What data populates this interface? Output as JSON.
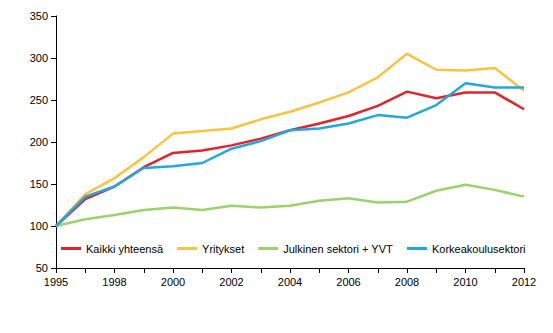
{
  "chart_data": {
    "type": "line",
    "categories": [
      "1995",
      null,
      "1998",
      null,
      "2000",
      null,
      "2002",
      null,
      "2004",
      null,
      "2006",
      null,
      "2008",
      null,
      "2010",
      null,
      "2012"
    ],
    "series": [
      {
        "name": "Kaikki yhteensä",
        "color": "#e3232b",
        "values": [
          100,
          132,
          147,
          170,
          187,
          190,
          196,
          204,
          214,
          222,
          231,
          243,
          260,
          252,
          259,
          259,
          239
        ]
      },
      {
        "name": "Yritykset",
        "color": "#f9c440",
        "values": [
          100,
          138,
          157,
          182,
          210,
          213,
          216,
          227,
          236,
          247,
          259,
          277,
          305,
          286,
          285,
          288,
          261
        ]
      },
      {
        "name": "Julkinen sektori + YVT",
        "color": "#9bd36b",
        "values": [
          100,
          108,
          113,
          119,
          122,
          119,
          124,
          122,
          124,
          130,
          133,
          128,
          129,
          142,
          149,
          143,
          135
        ]
      },
      {
        "name": "Korkeakoulusektori",
        "color": "#22a8e0",
        "values": [
          100,
          135,
          147,
          169,
          171,
          175,
          192,
          201,
          214,
          216,
          222,
          232,
          229,
          244,
          270,
          265,
          265
        ]
      }
    ],
    "ylim": [
      50,
      350
    ],
    "yticks": [
      50,
      100,
      150,
      200,
      250,
      300,
      350
    ],
    "grid": false,
    "legend": "bottom"
  }
}
